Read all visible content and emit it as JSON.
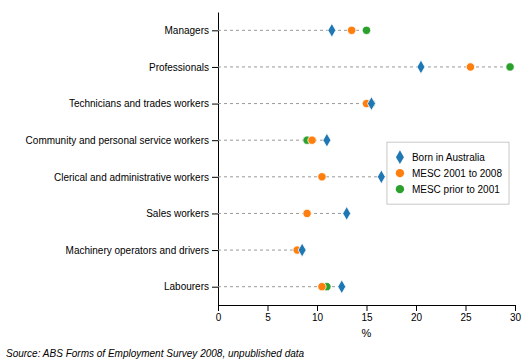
{
  "chart_data": {
    "type": "dot",
    "categories": [
      "Managers",
      "Professionals",
      "Technicians and trades workers",
      "Community and personal service workers",
      "Clerical and administrative workers",
      "Sales workers",
      "Machinery operators and drivers",
      "Labourers"
    ],
    "series": [
      {
        "name": "Born in Australia",
        "marker": "diamond",
        "values": [
          11.5,
          20.5,
          15.5,
          11.0,
          16.5,
          13.0,
          8.5,
          12.5
        ]
      },
      {
        "name": "MESC 2001 to 2008",
        "marker": "circle",
        "values": [
          13.5,
          25.5,
          15.0,
          9.5,
          10.5,
          9.0,
          8.0,
          10.5
        ]
      },
      {
        "name": "MESC prior to 2001",
        "marker": "circle",
        "values": [
          15.0,
          29.5,
          15.5,
          9.0,
          null,
          null,
          null,
          11.0
        ]
      }
    ],
    "xlabel": "%",
    "xlim": [
      0,
      30
    ],
    "xticks": [
      0,
      5,
      10,
      15,
      20,
      25,
      30
    ],
    "grid": false,
    "legend": "right",
    "annotations": [
      "Source: ABS Forms of Employment Survey 2008, unpublished data"
    ]
  }
}
